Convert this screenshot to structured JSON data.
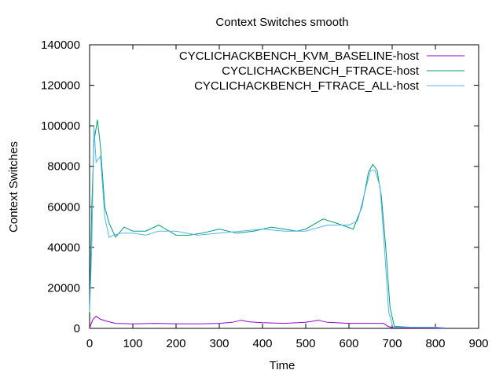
{
  "chart_data": {
    "type": "line",
    "title": "Context Switches smooth",
    "xlabel": "Time",
    "ylabel": "Context Switches",
    "xlim": [
      0,
      900
    ],
    "ylim": [
      0,
      140000
    ],
    "xticks": [
      "0",
      "100",
      "200",
      "300",
      "400",
      "500",
      "600",
      "700",
      "800",
      "900"
    ],
    "yticks": [
      "0",
      "20000",
      "40000",
      "60000",
      "80000",
      "100000",
      "120000",
      "140000"
    ],
    "legend_position": "top-right",
    "grid": false,
    "series": [
      {
        "name": "CYCLICHACKBENCH_KVM_BASELINE-host",
        "color": "#9400d3",
        "x": [
          0,
          3,
          8,
          15,
          25,
          40,
          60,
          100,
          150,
          200,
          250,
          300,
          330,
          350,
          370,
          400,
          450,
          500,
          530,
          550,
          600,
          650,
          680,
          690,
          700,
          800,
          820
        ],
        "y": [
          0,
          2000,
          4500,
          6000,
          4500,
          3500,
          2500,
          2200,
          2500,
          2300,
          2200,
          2500,
          3000,
          4000,
          3200,
          2800,
          2500,
          3000,
          4000,
          3000,
          2500,
          2500,
          2500,
          1000,
          300,
          200,
          100
        ]
      },
      {
        "name": "CYCLICHACKBENCH_FTRACE-host",
        "color": "#009e73",
        "x": [
          0,
          5,
          10,
          18,
          25,
          35,
          45,
          60,
          80,
          100,
          130,
          160,
          200,
          230,
          260,
          300,
          340,
          380,
          420,
          480,
          500,
          540,
          570,
          610,
          630,
          645,
          655,
          665,
          675,
          685,
          695,
          705,
          750,
          800,
          820
        ],
        "y": [
          10000,
          60000,
          92000,
          103000,
          90000,
          60000,
          52000,
          45000,
          50000,
          48000,
          48000,
          51000,
          46000,
          46000,
          47000,
          49000,
          47000,
          48000,
          50000,
          48000,
          49000,
          54000,
          52000,
          49000,
          60000,
          77000,
          81000,
          78000,
          65000,
          40000,
          10000,
          1000,
          500,
          500,
          300
        ]
      },
      {
        "name": "CYCLICHACKBENCH_FTRACE_ALL-host",
        "color": "#56b4e9",
        "x": [
          0,
          5,
          10,
          15,
          25,
          35,
          45,
          55,
          75,
          100,
          130,
          160,
          200,
          250,
          300,
          350,
          400,
          450,
          500,
          550,
          600,
          620,
          640,
          650,
          660,
          672,
          682,
          692,
          702,
          750,
          800,
          820
        ],
        "y": [
          8000,
          40000,
          100000,
          82000,
          85000,
          55000,
          45000,
          46000,
          47000,
          47000,
          46000,
          48000,
          48000,
          46000,
          47000,
          48000,
          49000,
          48000,
          48000,
          51000,
          51000,
          53000,
          70000,
          78000,
          78000,
          70000,
          40000,
          8000,
          500,
          600,
          600,
          300
        ]
      }
    ]
  }
}
